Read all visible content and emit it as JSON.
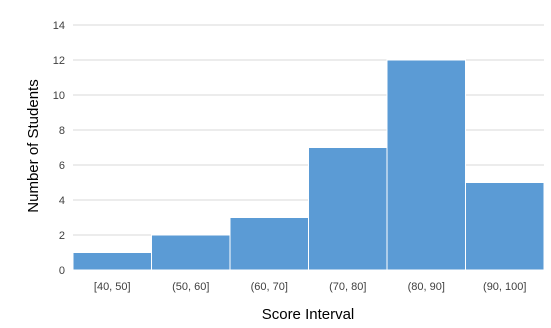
{
  "chart_data": {
    "type": "bar",
    "title": "",
    "xlabel": "Score Interval",
    "ylabel": "Number of Students",
    "categories": [
      "[40, 50]",
      "(50, 60]",
      "(60, 70]",
      "(70, 80]",
      "(80, 90]",
      "(90, 100]"
    ],
    "values": [
      1,
      2,
      3,
      7,
      12,
      5
    ],
    "ylim": [
      0,
      14
    ],
    "yticks": [
      0,
      2,
      4,
      6,
      8,
      10,
      12,
      14
    ],
    "grid": "horizontal",
    "bar_color": "#5b9bd5",
    "grid_color": "#d9d9d9"
  }
}
